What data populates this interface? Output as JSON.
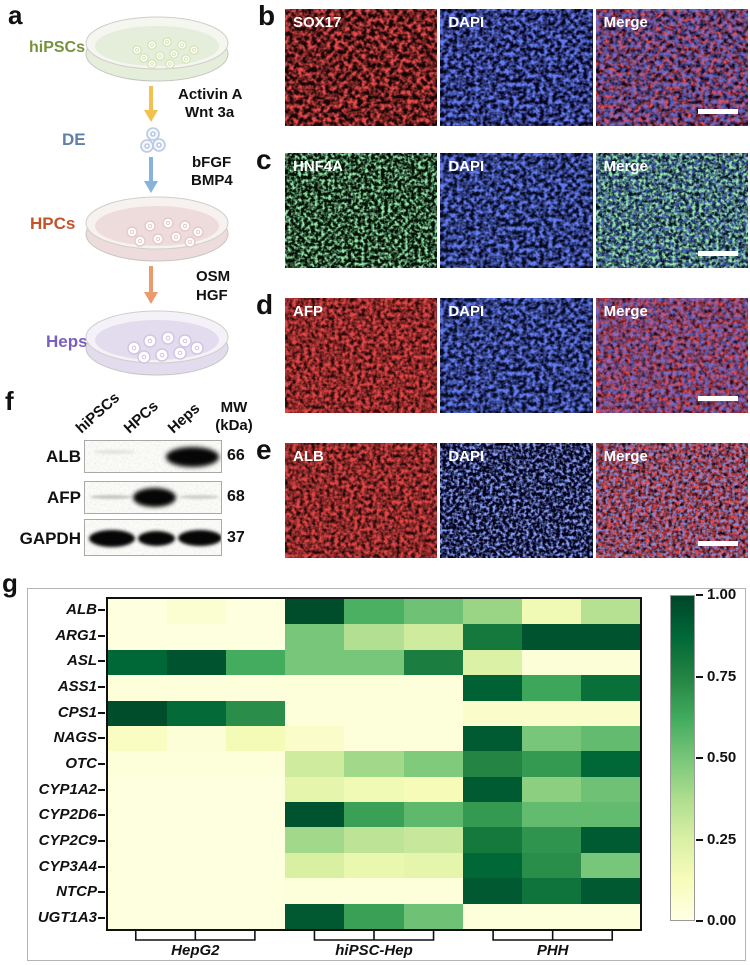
{
  "panels": {
    "a": {
      "label": "a",
      "stages": [
        {
          "name": "hiPSCs",
          "color": "#76923c",
          "dish_body": "#e4eedb",
          "dish_rim": "#f4f6ef",
          "colony_ring": "#d8e4b6"
        },
        {
          "name": "DE",
          "color": "#6080a8"
        },
        {
          "name": "HPCs",
          "color": "#c0552b",
          "dish_body": "#eedcdc",
          "dish_rim": "#f7f2ef",
          "colony_ring": "#e6c9c6"
        },
        {
          "name": "Heps",
          "color": "#7a5fc0",
          "dish_body": "#e2dcee",
          "dish_rim": "#f4f2f8",
          "colony_ring": "#cfc4e6"
        }
      ],
      "arrows": [
        {
          "color": "#f2c14e",
          "factors": [
            "Activin A",
            "Wnt 3a"
          ]
        },
        {
          "color": "#85b3dc",
          "factors": [
            "bFGF",
            "BMP4"
          ]
        },
        {
          "color": "#eb9a6d",
          "factors": [
            "OSM",
            "HGF"
          ]
        }
      ]
    },
    "b": {
      "label": "b",
      "images": [
        "SOX17",
        "DAPI",
        "Merge"
      ]
    },
    "c": {
      "label": "c",
      "images": [
        "HNF4A",
        "DAPI",
        "Merge"
      ]
    },
    "d": {
      "label": "d",
      "images": [
        "AFP",
        "DAPI",
        "Merge"
      ]
    },
    "e": {
      "label": "e",
      "images": [
        "ALB",
        "DAPI",
        "Merge"
      ]
    },
    "f": {
      "label": "f",
      "lanes": [
        "hiPSCs",
        "HPCs",
        "Heps"
      ],
      "mw_title": "MW",
      "mw_unit": "(kDa)",
      "blots": [
        {
          "protein": "ALB",
          "mw": "66"
        },
        {
          "protein": "AFP",
          "mw": "68"
        },
        {
          "protein": "GAPDH",
          "mw": "37"
        }
      ]
    },
    "g": {
      "label": "g"
    }
  },
  "chart_data": {
    "type": "heatmap",
    "rows": [
      "ALB",
      "ARG1",
      "ASL",
      "ASS1",
      "CPS1",
      "NAGS",
      "OTC",
      "CYP1A2",
      "CYP2D6",
      "CYP2C9",
      "CYP3A4",
      "NTCP",
      "UGT1A3"
    ],
    "column_groups": [
      {
        "label": "HepG2",
        "columns": 3
      },
      {
        "label": "hiPSC-Hep",
        "columns": 3
      },
      {
        "label": "PHH",
        "columns": 3
      }
    ],
    "values": [
      [
        0.02,
        0.06,
        0.02,
        0.97,
        0.6,
        0.52,
        0.42,
        0.15,
        0.35
      ],
      [
        0.02,
        0.02,
        0.02,
        0.5,
        0.36,
        0.28,
        0.8,
        0.95,
        0.95
      ],
      [
        0.88,
        0.95,
        0.62,
        0.5,
        0.5,
        0.78,
        0.24,
        0.04,
        0.04
      ],
      [
        0.03,
        0.03,
        0.03,
        0.03,
        0.03,
        0.03,
        0.9,
        0.64,
        0.84
      ],
      [
        0.97,
        0.86,
        0.72,
        0.03,
        0.03,
        0.03,
        0.08,
        0.08,
        0.08
      ],
      [
        0.1,
        0.04,
        0.14,
        0.08,
        0.03,
        0.03,
        0.92,
        0.5,
        0.55
      ],
      [
        0.03,
        0.03,
        0.03,
        0.28,
        0.4,
        0.48,
        0.75,
        0.68,
        0.88
      ],
      [
        0.02,
        0.02,
        0.02,
        0.2,
        0.15,
        0.13,
        0.92,
        0.45,
        0.52
      ],
      [
        0.02,
        0.02,
        0.02,
        0.95,
        0.66,
        0.56,
        0.68,
        0.55,
        0.55
      ],
      [
        0.02,
        0.02,
        0.02,
        0.4,
        0.33,
        0.3,
        0.8,
        0.7,
        0.92
      ],
      [
        0.02,
        0.02,
        0.02,
        0.25,
        0.18,
        0.2,
        0.88,
        0.72,
        0.5
      ],
      [
        0.02,
        0.02,
        0.02,
        0.03,
        0.03,
        0.03,
        0.93,
        0.82,
        0.93
      ],
      [
        0.02,
        0.02,
        0.02,
        0.93,
        0.66,
        0.52,
        0.03,
        0.03,
        0.03
      ]
    ],
    "vmin": 0,
    "vmax": 1,
    "colormap": "YlGn",
    "colormap_stops": [
      "#ffffe5",
      "#f7fcb9",
      "#d9f0a3",
      "#addd8e",
      "#78c679",
      "#41ab5d",
      "#238443",
      "#006837",
      "#004529"
    ],
    "colorbar_ticks": [
      {
        "value": 1.0,
        "label": "1.00"
      },
      {
        "value": 0.75,
        "label": "0.75"
      },
      {
        "value": 0.5,
        "label": "0.50"
      },
      {
        "value": 0.25,
        "label": "0.25"
      },
      {
        "value": 0.0,
        "label": "0.00"
      }
    ],
    "legend_position": "right",
    "grid": false
  }
}
